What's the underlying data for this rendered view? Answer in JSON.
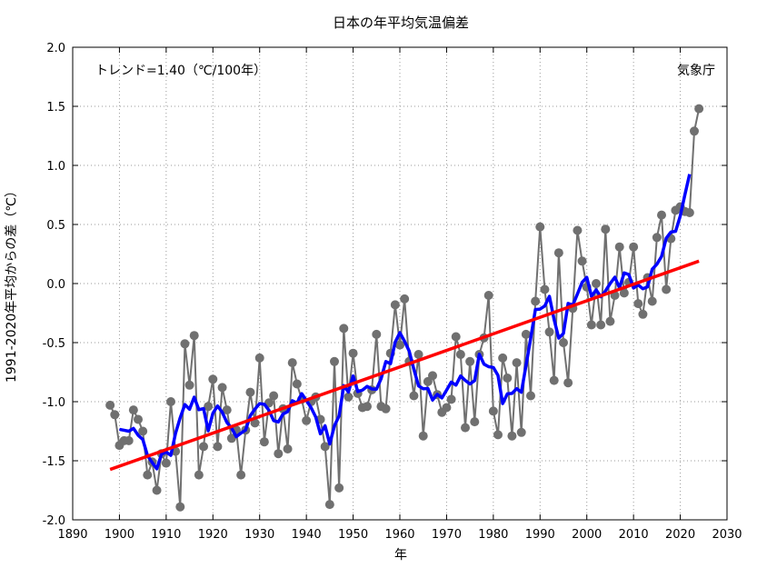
{
  "chart_data": {
    "type": "line",
    "title": "日本の年平均気温偏差",
    "xlabel": "年",
    "ylabel": "1991-2020年平均からの差（℃）",
    "annotation_trend": "トレンド=1.40（℃/100年）",
    "annotation_source": "気象庁",
    "xlim": [
      1890,
      2030
    ],
    "ylim": [
      -2.0,
      2.0
    ],
    "xticks": [
      "1890",
      "1900",
      "1910",
      "1920",
      "1930",
      "1940",
      "1950",
      "1960",
      "1970",
      "1980",
      "1990",
      "2000",
      "2010",
      "2020",
      "2030"
    ],
    "yticks": [
      "-2.0",
      "-1.5",
      "-1.0",
      "-0.5",
      "0.0",
      "0.5",
      "1.0",
      "1.5",
      "2.0"
    ],
    "grid": true,
    "trend_per_century": 1.4,
    "start_year": 1898,
    "series": [
      {
        "kind": "annual",
        "color": "#707070",
        "values": [
          -1.03,
          -1.11,
          -1.37,
          -1.33,
          -1.33,
          -1.07,
          -1.15,
          -1.25,
          -1.62,
          -1.51,
          -1.75,
          -1.44,
          -1.52,
          -1.0,
          -1.42,
          -1.89,
          -0.51,
          -0.86,
          -0.44,
          -1.62,
          -1.38,
          -1.04,
          -0.81,
          -1.38,
          -0.88,
          -1.07,
          -1.31,
          -1.24,
          -1.62,
          -1.24,
          -0.92,
          -1.18,
          -0.63,
          -1.34,
          -1.01,
          -0.95,
          -1.44,
          -1.06,
          -1.4,
          -0.67,
          -0.85,
          -0.98,
          -1.16,
          -1.0,
          -0.96,
          -1.15,
          -1.38,
          -1.87,
          -0.66,
          -1.73,
          -0.38,
          -0.96,
          -0.59,
          -0.93,
          -1.05,
          -1.04,
          -0.9,
          -0.43,
          -1.04,
          -1.06,
          -0.59,
          -0.18,
          -0.52,
          -0.13,
          -0.66,
          -0.95,
          -0.6,
          -1.29,
          -0.83,
          -0.78,
          -0.94,
          -1.09,
          -1.05,
          -0.98,
          -0.45,
          -0.6,
          -1.22,
          -0.66,
          -1.17,
          -0.6,
          -0.46,
          -0.1,
          -1.08,
          -1.28,
          -0.63,
          -0.8,
          -1.29,
          -0.67,
          -1.26,
          -0.43,
          -0.95,
          -0.15,
          0.48,
          -0.05,
          -0.41,
          -0.82,
          0.26,
          -0.5,
          -0.84,
          -0.21,
          0.45,
          0.19,
          -0.03,
          -0.35,
          0.0,
          -0.35,
          0.46,
          -0.32,
          -0.1,
          0.31,
          -0.08,
          0.01,
          0.31,
          -0.17,
          -0.26,
          0.05,
          -0.15,
          0.39,
          0.58,
          -0.05,
          0.38,
          0.62,
          0.65,
          0.61,
          0.6,
          1.29,
          1.48
        ]
      },
      {
        "kind": "5-year running mean",
        "color": "#0000ff"
      },
      {
        "kind": "linear trend",
        "color": "#ff0000"
      }
    ]
  }
}
